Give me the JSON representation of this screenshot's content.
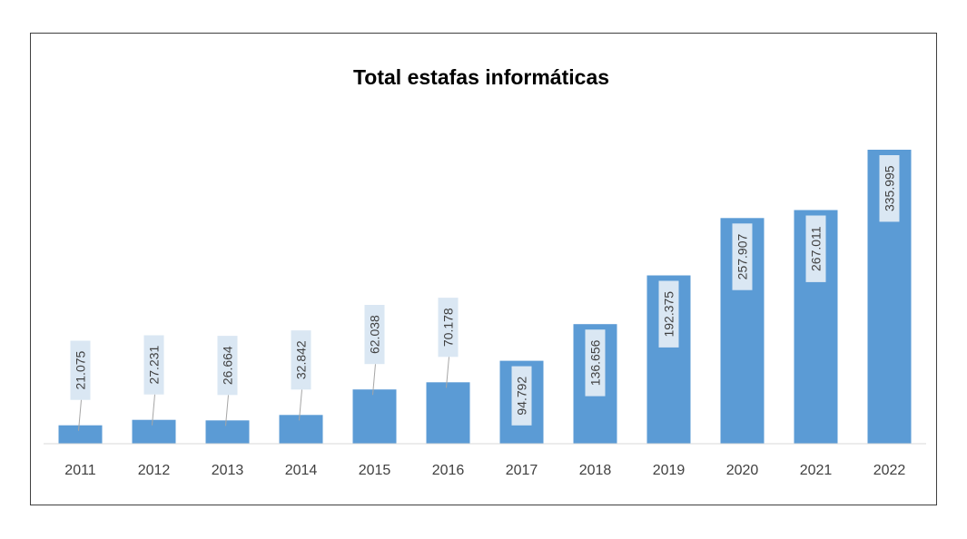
{
  "chart_data": {
    "type": "bar",
    "title": "Total estafas informáticas",
    "xlabel": "",
    "ylabel": "",
    "categories": [
      "2011",
      "2012",
      "2013",
      "2014",
      "2015",
      "2016",
      "2017",
      "2018",
      "2019",
      "2020",
      "2021",
      "2022"
    ],
    "values": [
      21075,
      27231,
      26664,
      32842,
      62038,
      70178,
      94792,
      136656,
      192375,
      257907,
      267011,
      335995
    ],
    "value_labels": [
      "21.075",
      "27.231",
      "26.664",
      "32.842",
      "62.038",
      "70.178",
      "94.792",
      "136.656",
      "192.375",
      "257.907",
      "267.011",
      "335.995"
    ],
    "ylim": [
      0,
      340000
    ],
    "grid": false,
    "legend": "none",
    "colors": {
      "bar": "#5b9bd5",
      "label_box": "#dae7f3",
      "axis": "#d9d9d9",
      "leader_line": "#a6a6a6",
      "border": "#3f3f3f"
    }
  }
}
